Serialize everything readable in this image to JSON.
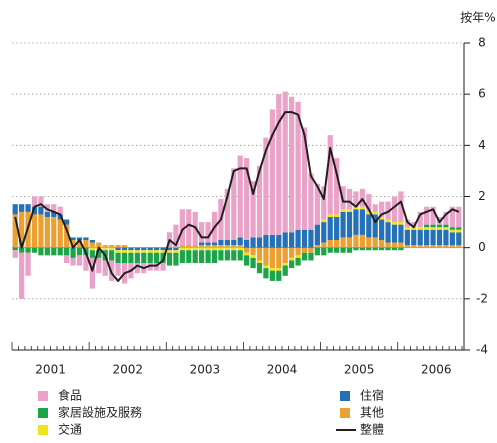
{
  "chart_data": {
    "type": "bar",
    "y_label": "按年%",
    "categories": [
      null,
      null,
      null,
      null,
      null,
      null,
      "2001",
      null,
      null,
      null,
      null,
      null,
      null,
      null,
      null,
      null,
      null,
      null,
      "2002",
      null,
      null,
      null,
      null,
      null,
      null,
      null,
      null,
      null,
      null,
      null,
      "2003",
      null,
      null,
      null,
      null,
      null,
      null,
      null,
      null,
      null,
      null,
      null,
      "2004",
      null,
      null,
      null,
      null,
      null,
      null,
      null,
      null,
      null,
      null,
      null,
      "2005",
      null,
      null,
      null,
      null,
      null,
      null,
      null,
      null,
      null,
      null,
      null,
      "2006",
      null,
      null,
      null
    ],
    "series": [
      {
        "name": "食品",
        "color": "#eaa2c9",
        "values": [
          -0.3,
          -1.8,
          -0.9,
          0.4,
          0.4,
          0.3,
          0.3,
          0.3,
          -0.3,
          -0.3,
          -0.4,
          -0.6,
          -1.2,
          -0.6,
          -0.6,
          -0.8,
          -0.5,
          -0.8,
          -0.6,
          -0.4,
          -0.4,
          -0.3,
          -0.3,
          -0.3,
          0.6,
          0.9,
          1.4,
          1.4,
          1.3,
          0.8,
          0.8,
          1.2,
          1.6,
          2.0,
          2.8,
          3.2,
          3.2,
          2.2,
          2.8,
          3.8,
          4.9,
          5.5,
          5.5,
          5.3,
          5.0,
          4.0,
          2.2,
          1.6,
          1.3,
          3.1,
          2.2,
          0.9,
          0.8,
          0.6,
          0.7,
          0.7,
          0.3,
          0.6,
          0.7,
          1.0,
          1.2,
          0.3,
          0.2,
          0.6,
          0.7,
          0.7,
          0.3,
          0.5,
          0.8,
          0.8
        ]
      },
      {
        "name": "家居設施及服務",
        "color": "#1ba548",
        "values": [
          -0.1,
          -0.2,
          -0.2,
          -0.2,
          -0.3,
          -0.3,
          -0.3,
          -0.3,
          -0.3,
          -0.4,
          -0.3,
          -0.3,
          -0.3,
          -0.3,
          -0.4,
          -0.4,
          -0.4,
          -0.4,
          -0.4,
          -0.4,
          -0.4,
          -0.4,
          -0.4,
          -0.4,
          -0.5,
          -0.5,
          -0.5,
          -0.5,
          -0.5,
          -0.5,
          -0.5,
          -0.5,
          -0.4,
          -0.4,
          -0.4,
          -0.4,
          -0.4,
          -0.4,
          -0.4,
          -0.4,
          -0.4,
          -0.4,
          -0.4,
          -0.3,
          -0.3,
          -0.3,
          -0.3,
          -0.3,
          -0.3,
          -0.2,
          -0.2,
          -0.2,
          -0.2,
          -0.1,
          -0.1,
          -0.1,
          -0.1,
          -0.1,
          -0.1,
          -0.1,
          -0.1,
          0,
          0,
          0,
          0.1,
          0.1,
          0.1,
          0.1,
          0.1,
          0.1
        ]
      },
      {
        "name": "交通",
        "color": "#f2e41c",
        "values": [
          0,
          0,
          0,
          0,
          0,
          0,
          0,
          0,
          0,
          0,
          0,
          0,
          -0.1,
          -0.1,
          -0.1,
          -0.1,
          -0.1,
          -0.1,
          -0.1,
          -0.1,
          -0.1,
          -0.1,
          -0.1,
          -0.1,
          -0.1,
          -0.1,
          -0.1,
          -0.1,
          -0.1,
          -0.1,
          -0.1,
          -0.1,
          -0.1,
          -0.1,
          -0.1,
          -0.1,
          -0.1,
          -0.1,
          -0.1,
          -0.1,
          -0.1,
          -0.1,
          -0.1,
          -0.1,
          -0.1,
          0,
          0,
          0,
          0.1,
          0.1,
          0.1,
          0.1,
          0.1,
          0.1,
          0.1,
          0.1,
          0.1,
          0.1,
          0.1,
          0.1,
          0.1,
          0.1,
          0.1,
          0.1,
          0.1,
          0.1,
          0.1,
          0.1,
          0.1,
          0.1
        ]
      },
      {
        "name": "住宿",
        "color": "#2571b8",
        "values": [
          0.4,
          0.3,
          0.3,
          0.3,
          0.3,
          0.2,
          0.2,
          0.2,
          0.2,
          0.1,
          0.1,
          0.1,
          0.1,
          0,
          0,
          0,
          -0.1,
          -0.1,
          -0.1,
          -0.1,
          -0.1,
          -0.1,
          -0.1,
          -0.1,
          -0.1,
          -0.1,
          0,
          0,
          0,
          0.1,
          0.1,
          0.1,
          0.2,
          0.2,
          0.2,
          0.3,
          0.3,
          0.4,
          0.4,
          0.5,
          0.5,
          0.5,
          0.6,
          0.6,
          0.7,
          0.7,
          0.7,
          0.8,
          0.8,
          0.9,
          0.9,
          1.0,
          1.0,
          1.0,
          1.0,
          0.9,
          0.9,
          0.8,
          0.8,
          0.7,
          0.7,
          0.6,
          0.6,
          0.6,
          0.6,
          0.6,
          0.6,
          0.6,
          0.5,
          0.5
        ]
      },
      {
        "name": "其他",
        "color": "#eba032",
        "values": [
          1.3,
          1.4,
          1.4,
          1.3,
          1.3,
          1.2,
          1.2,
          1.1,
          0.9,
          0.3,
          0.3,
          0.3,
          0.2,
          0.2,
          0.1,
          0.1,
          0.1,
          0.1,
          0,
          0,
          0,
          0,
          0,
          0,
          0,
          0,
          0.1,
          0.1,
          0.1,
          0.1,
          0.1,
          0.1,
          0.1,
          0.1,
          0.1,
          0.1,
          -0.2,
          -0.3,
          -0.5,
          -0.7,
          -0.8,
          -0.8,
          -0.6,
          -0.4,
          -0.3,
          -0.2,
          -0.2,
          0.1,
          0.2,
          0.3,
          0.3,
          0.4,
          0.4,
          0.5,
          0.5,
          0.4,
          0.4,
          0.3,
          0.2,
          0.2,
          0.2,
          0.1,
          0.1,
          0.1,
          0.1,
          0.1,
          0.1,
          0.1,
          0.1,
          0.1
        ]
      },
      {
        "name": "整體",
        "color": "#231f20",
        "type": "line",
        "values": [
          1.2,
          0.0,
          0.8,
          1.6,
          1.7,
          1.5,
          1.4,
          1.3,
          0.7,
          0.0,
          0.3,
          -0.2,
          -0.9,
          0.0,
          -0.3,
          -1.0,
          -1.3,
          -1.0,
          -0.9,
          -0.7,
          -0.8,
          -0.7,
          -0.7,
          -0.5,
          0.3,
          0.1,
          0.7,
          0.9,
          0.8,
          0.4,
          0.4,
          0.8,
          1.1,
          2.0,
          3.0,
          3.1,
          3.1,
          2.1,
          3.0,
          3.8,
          4.4,
          4.9,
          5.3,
          5.3,
          5.2,
          4.4,
          2.8,
          2.4,
          1.9,
          3.9,
          2.9,
          1.8,
          1.8,
          1.6,
          1.9,
          1.5,
          1.0,
          1.3,
          1.4,
          1.6,
          1.8,
          1.0,
          0.8,
          1.3,
          1.4,
          1.5,
          1.0,
          1.3,
          1.5,
          1.4
        ]
      }
    ],
    "ylim": [
      -4,
      8
    ],
    "yticks": [
      -4,
      -2,
      0,
      2,
      4,
      6,
      8
    ],
    "grid": true
  }
}
